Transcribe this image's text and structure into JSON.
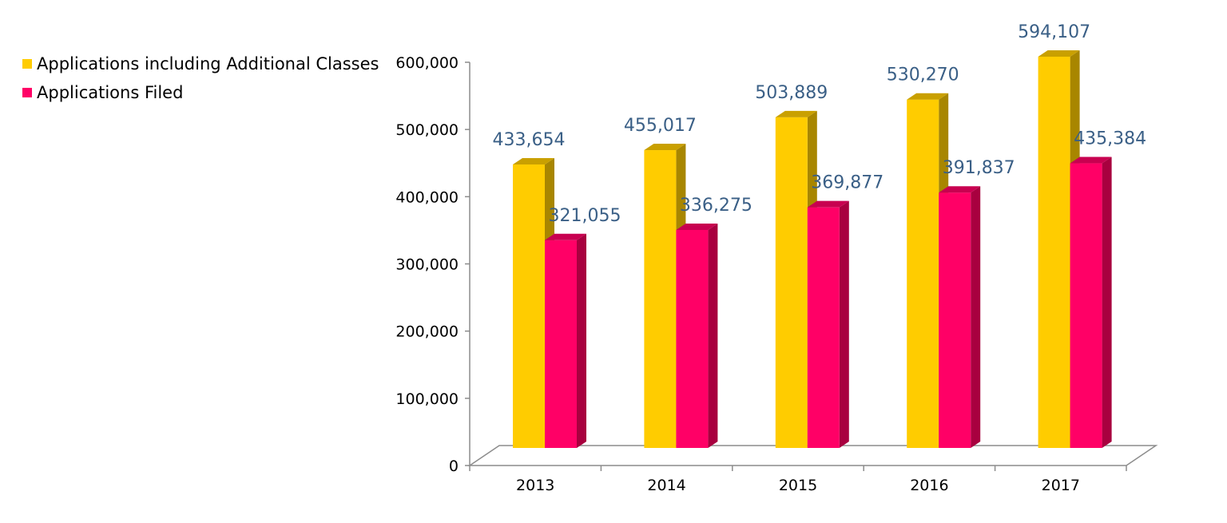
{
  "chart_data": {
    "type": "bar",
    "title": "",
    "xlabel": "",
    "ylabel": "",
    "categories": [
      "2013",
      "2014",
      "2015",
      "2016",
      "2017"
    ],
    "series": [
      {
        "name": "Applications including Additional Classes",
        "values": [
          433654,
          455017,
          503889,
          530270,
          594107
        ],
        "labels": [
          "433,654",
          "455,017",
          "503,889",
          "530,270",
          "594,107"
        ],
        "color": "#FFCC00",
        "side_color": "#A88600",
        "top_color": "#C9A000"
      },
      {
        "name": "Applications Filed",
        "values": [
          321055,
          336275,
          369877,
          391837,
          435384
        ],
        "labels": [
          "321,055",
          "336,275",
          "369,877",
          "391,837",
          "435,384"
        ],
        "color": "#FF0066",
        "side_color": "#A8003F",
        "top_color": "#C80050"
      }
    ],
    "ylim": [
      0,
      600000
    ],
    "y_ticks": [
      0,
      100000,
      200000,
      300000,
      400000,
      500000,
      600000
    ],
    "y_tick_labels": [
      "0",
      "100,000",
      "200,000",
      "300,000",
      "400,000",
      "500,000",
      "600,000"
    ],
    "grid": false,
    "legend_position": "top-left",
    "style": "3d-clustered-column"
  }
}
